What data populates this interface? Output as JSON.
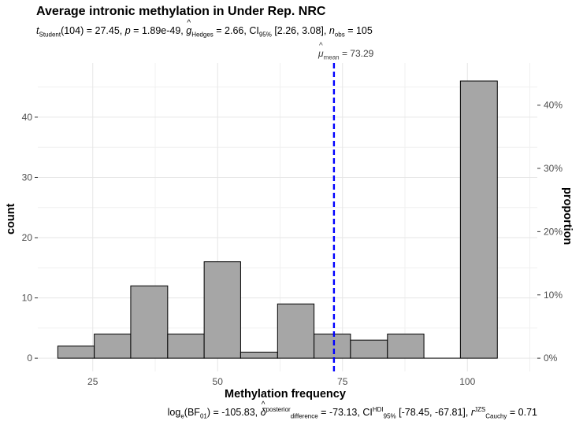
{
  "title": "Average intronic methylation in Under Rep. NRC",
  "subtitle": {
    "t_label": "t",
    "t_sub": "Student",
    "t_df_val": "(104) = 27.45,",
    "p_label": "p",
    "p_val": "= 1.89e-49,",
    "g_label": "g",
    "g_sub": "Hedges",
    "g_val": "= 2.66, CI",
    "ci_sub": "95%",
    "ci_val": "[2.26, 3.08],",
    "n_label": "n",
    "n_sub": "obs",
    "n_val": "= 105"
  },
  "caption": {
    "log_text": "log",
    "log_sub": "e",
    "bf_text": "(BF",
    "bf_sub": "01",
    "bf_val": ") = -105.83,",
    "delta_label": "δ",
    "delta_sup": "posterior",
    "delta_sub": "difference",
    "delta_val": "= -73.13, CI",
    "ci_sup": "HDI",
    "ci_sub": "95%",
    "ci_val": "[-78.45, -67.81],",
    "r_label": "r",
    "r_sup": "JZS",
    "r_sub": "Cauchy",
    "r_val": "= 0.71"
  },
  "mean_label": {
    "mu": "μ",
    "mu_sub": "mean",
    "value": "= 73.29"
  },
  "chart_data": {
    "type": "bar",
    "title": "Average intronic methylation in Under Rep. NRC",
    "xlabel": "Methylation frequency",
    "ylabel": "count",
    "y2label": "proportion",
    "bin_width": 7.33,
    "bins": [
      {
        "start": 18.0,
        "end": 25.3,
        "count": 2
      },
      {
        "start": 25.3,
        "end": 32.6,
        "count": 4
      },
      {
        "start": 32.6,
        "end": 40.0,
        "count": 12
      },
      {
        "start": 40.0,
        "end": 47.3,
        "count": 4
      },
      {
        "start": 47.3,
        "end": 54.6,
        "count": 16
      },
      {
        "start": 54.6,
        "end": 62.0,
        "count": 1
      },
      {
        "start": 62.0,
        "end": 69.3,
        "count": 9
      },
      {
        "start": 69.3,
        "end": 76.6,
        "count": 4
      },
      {
        "start": 76.6,
        "end": 84.0,
        "count": 3
      },
      {
        "start": 84.0,
        "end": 91.3,
        "count": 4
      },
      {
        "start": 91.3,
        "end": 98.6,
        "count": 0
      },
      {
        "start": 98.6,
        "end": 106.0,
        "count": 46
      }
    ],
    "mean": 73.29,
    "n_obs": 105,
    "xlim": [
      14,
      114
    ],
    "ylim": [
      -2.2,
      49
    ],
    "x_ticks": [
      "25",
      "50",
      "75",
      "100"
    ],
    "x_tick_values": [
      25,
      50,
      75,
      100
    ],
    "y_ticks": [
      "0",
      "10",
      "20",
      "30",
      "40"
    ],
    "y_tick_values": [
      0,
      10,
      20,
      30,
      40
    ],
    "y2_ticks": [
      "0%",
      "10%",
      "20%",
      "30%",
      "40%"
    ],
    "y2_tick_values": [
      0,
      0.1,
      0.2,
      0.3,
      0.4
    ],
    "grid": true,
    "bar_fill": "#a6a6a6",
    "bar_stroke": "#000000",
    "mean_line_color": "#0000ff"
  }
}
